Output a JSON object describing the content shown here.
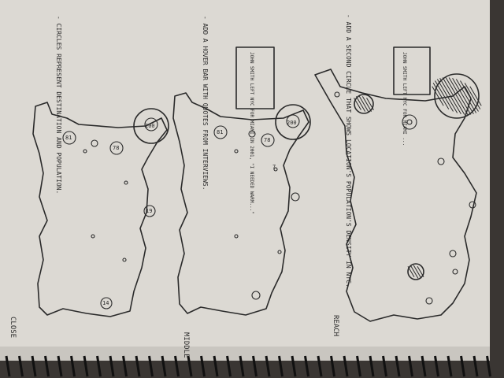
{
  "sketches": [
    {
      "label": "CLOSE",
      "note": "- CIRCLES REPRESENT DESTINATION AND POPULATION.",
      "numbers": [
        "200",
        "81",
        "78",
        "19",
        "14"
      ]
    },
    {
      "label": "MIDDLE",
      "note": "- ADD A HOVER BAR WITH QUOTES FROM INTERVIEWS.",
      "quote": "JOHN SMITH LEFT NYC FOR MIAMI IN 2001, \"I NEEDED WARM...\"",
      "numbers": [
        "200",
        "81",
        "78",
        "7"
      ]
    },
    {
      "label": "REACH",
      "note": "- ADD A SECOND CIRCLE THAT SHOWS LOCATION'S POPULATION'S DENSITY IN NYC.",
      "quote": "JOHN SMITH LEFT NYC FOR MIAMI ..."
    }
  ],
  "colors": {
    "paper": "#dcd9d3",
    "ink": "#2a2a2a",
    "background": "#3a3633"
  }
}
